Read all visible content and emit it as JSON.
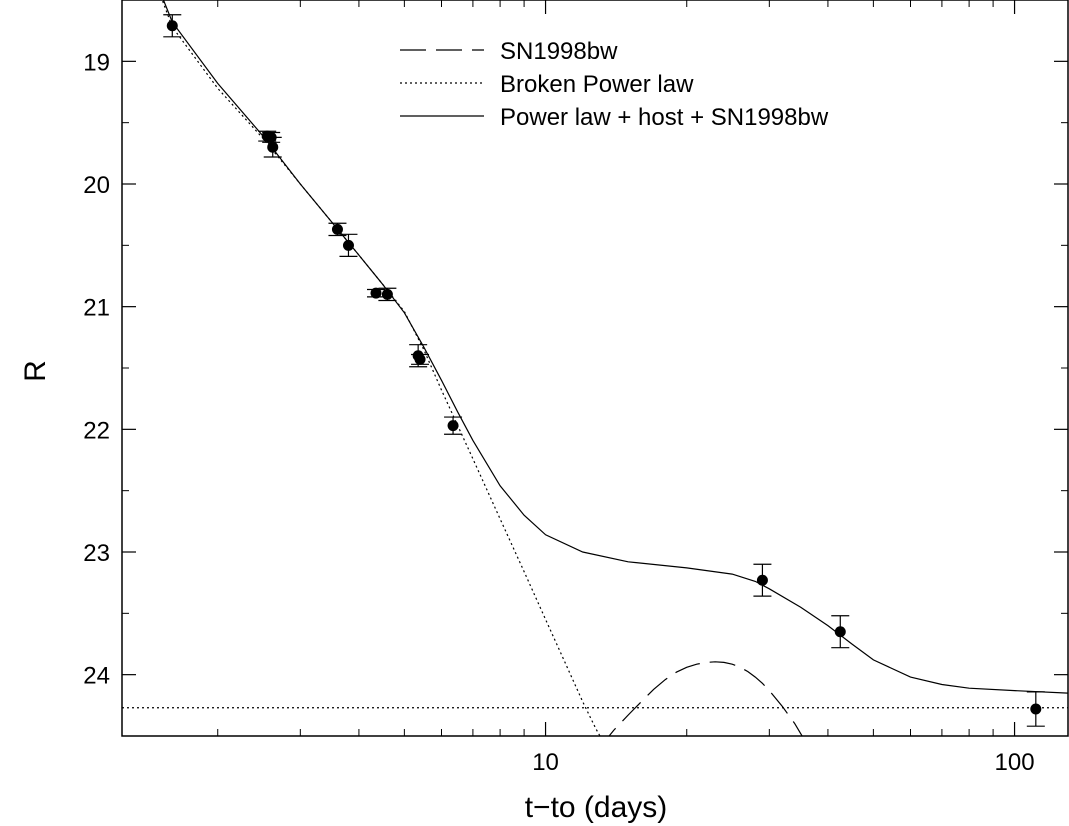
{
  "chart_data": {
    "type": "scatter",
    "title": "",
    "xlabel": "t−to (days)",
    "ylabel": "R",
    "xscale": "log",
    "xlim": [
      1.25,
      130
    ],
    "ylim": [
      24.5,
      18.5
    ],
    "y_inverted": true,
    "x_ticks": [
      {
        "value": 10,
        "label": "10"
      },
      {
        "value": 100,
        "label": "100"
      }
    ],
    "y_ticks": [
      {
        "value": 19,
        "label": "19"
      },
      {
        "value": 20,
        "label": "20"
      },
      {
        "value": 21,
        "label": "21"
      },
      {
        "value": 22,
        "label": "22"
      },
      {
        "value": 23,
        "label": "23"
      },
      {
        "value": 24,
        "label": "24"
      }
    ],
    "legend_position": "top-right",
    "observations": [
      {
        "t": 1.6,
        "R": 18.71,
        "err": 0.09
      },
      {
        "t": 2.55,
        "R": 19.61,
        "err": 0.04
      },
      {
        "t": 2.6,
        "R": 19.62,
        "err": 0.04
      },
      {
        "t": 2.62,
        "R": 19.7,
        "err": 0.08
      },
      {
        "t": 3.6,
        "R": 20.37,
        "err": 0.05
      },
      {
        "t": 3.8,
        "R": 20.5,
        "err": 0.09
      },
      {
        "t": 4.35,
        "R": 20.89,
        "err": 0.03
      },
      {
        "t": 4.6,
        "R": 20.9,
        "err": 0.05
      },
      {
        "t": 5.35,
        "R": 21.4,
        "err": 0.09
      },
      {
        "t": 5.4,
        "R": 21.43,
        "err": 0.04
      },
      {
        "t": 6.35,
        "R": 21.97,
        "err": 0.07
      },
      {
        "t": 29.0,
        "R": 23.23,
        "err": 0.13
      },
      {
        "t": 42.5,
        "R": 23.65,
        "err": 0.13
      },
      {
        "t": 111.0,
        "R": 24.28,
        "err": 0.14
      }
    ],
    "series": [
      {
        "name": "SN1998bw",
        "style": "dashed",
        "points": [
          [
            13.0,
            24.6
          ],
          [
            14.0,
            24.45
          ],
          [
            15.0,
            24.33
          ],
          [
            16.0,
            24.22
          ],
          [
            17.0,
            24.12
          ],
          [
            18.0,
            24.04
          ],
          [
            19.0,
            23.98
          ],
          [
            20.0,
            23.94
          ],
          [
            21.0,
            23.915
          ],
          [
            22.0,
            23.9
          ],
          [
            23.0,
            23.895
          ],
          [
            24.0,
            23.9
          ],
          [
            25.0,
            23.915
          ],
          [
            26.0,
            23.94
          ],
          [
            27.0,
            23.975
          ],
          [
            28.0,
            24.02
          ],
          [
            29.0,
            24.07
          ],
          [
            30.0,
            24.13
          ],
          [
            32.0,
            24.26
          ],
          [
            34.0,
            24.4
          ],
          [
            35.5,
            24.52
          ]
        ]
      },
      {
        "name": "Broken Power law",
        "style": "dotted",
        "points": [
          [
            1.45,
            18.28
          ],
          [
            1.6,
            18.72
          ],
          [
            2.0,
            19.22
          ],
          [
            2.5,
            19.63
          ],
          [
            3.0,
            20.0
          ],
          [
            3.5,
            20.31
          ],
          [
            4.0,
            20.58
          ],
          [
            4.5,
            20.82
          ],
          [
            5.0,
            21.04
          ],
          [
            5.5,
            21.35
          ],
          [
            6.0,
            21.68
          ],
          [
            7.0,
            22.24
          ],
          [
            8.0,
            22.73
          ],
          [
            9.0,
            23.16
          ],
          [
            10.0,
            23.55
          ],
          [
            11.0,
            23.9
          ],
          [
            12.0,
            24.22
          ],
          [
            12.8,
            24.44
          ],
          [
            13.2,
            24.53
          ]
        ],
        "host_level": 24.27
      },
      {
        "name": "Power law + host + SN1998bw",
        "style": "solid",
        "points": [
          [
            1.45,
            18.27
          ],
          [
            1.6,
            18.68
          ],
          [
            2.0,
            19.18
          ],
          [
            2.5,
            19.61
          ],
          [
            3.0,
            20.0
          ],
          [
            3.5,
            20.31
          ],
          [
            4.0,
            20.58
          ],
          [
            4.5,
            20.82
          ],
          [
            5.0,
            21.05
          ],
          [
            5.5,
            21.33
          ],
          [
            6.0,
            21.6
          ],
          [
            6.5,
            21.86
          ],
          [
            7.0,
            22.09
          ],
          [
            8.0,
            22.46
          ],
          [
            9.0,
            22.7
          ],
          [
            10.0,
            22.86
          ],
          [
            12.0,
            23.0
          ],
          [
            15.0,
            23.08
          ],
          [
            20.0,
            23.13
          ],
          [
            25.0,
            23.18
          ],
          [
            28.0,
            23.24
          ],
          [
            30.0,
            23.3
          ],
          [
            35.0,
            23.45
          ],
          [
            40.0,
            23.6
          ],
          [
            45.0,
            23.75
          ],
          [
            50.0,
            23.88
          ],
          [
            60.0,
            24.02
          ],
          [
            70.0,
            24.08
          ],
          [
            80.0,
            24.11
          ],
          [
            100.0,
            24.13
          ],
          [
            130.0,
            24.15
          ]
        ]
      }
    ]
  }
}
